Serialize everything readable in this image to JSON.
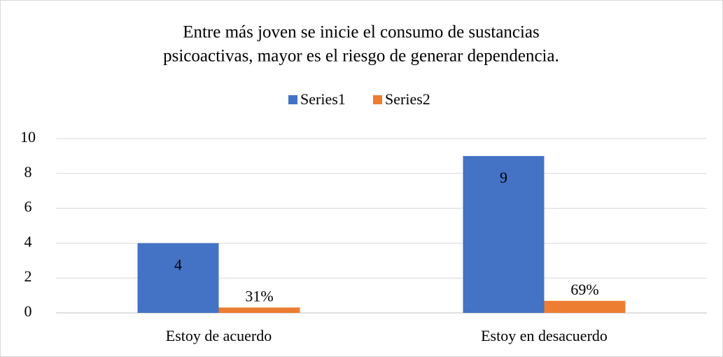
{
  "chart_data": {
    "type": "bar",
    "title": [
      "Entre más joven se inicie el consumo de sustancias",
      "psicoactivas, mayor es el riesgo de generar dependencia."
    ],
    "categories": [
      "Estoy de acuerdo",
      "Estoy en desacuerdo"
    ],
    "series": [
      {
        "name": "Series1",
        "color": "#4472c4",
        "values": [
          4,
          9
        ]
      },
      {
        "name": "Series2",
        "color": "#ed7d31",
        "values": [
          0.31,
          0.69
        ],
        "value_labels": [
          "31%",
          "69%"
        ]
      }
    ],
    "ylim": [
      0,
      10
    ],
    "yticks": [
      0,
      2,
      4,
      6,
      8,
      10
    ],
    "grid": true,
    "legend": "top"
  }
}
